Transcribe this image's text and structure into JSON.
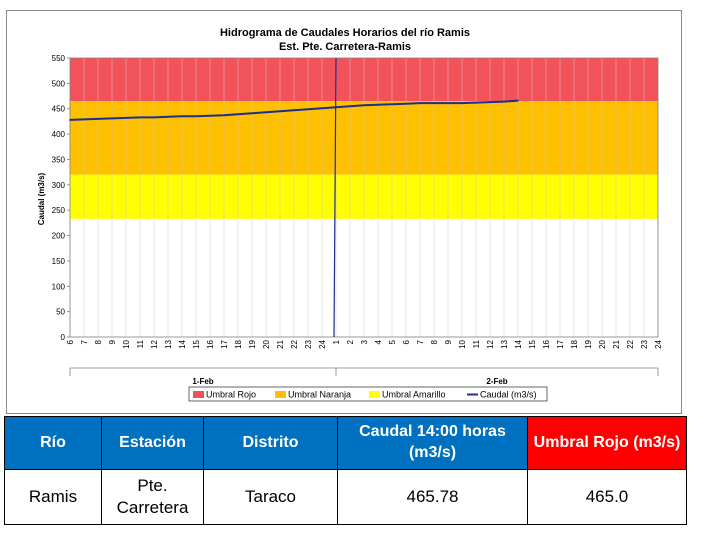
{
  "chart_data": {
    "type": "line",
    "title": "Hidrograma de Caudales Horarios del río Ramis",
    "subtitle": "Est. Pte. Carretera-Ramis",
    "ylabel": "Caudal  (m3/s)",
    "ylim": [
      0,
      550
    ],
    "yticks": [
      0,
      50,
      100,
      150,
      200,
      250,
      300,
      350,
      400,
      450,
      500,
      550
    ],
    "hour_ticks": [
      "6",
      "7",
      "8",
      "9",
      "10",
      "11",
      "12",
      "13",
      "14",
      "15",
      "16",
      "17",
      "18",
      "19",
      "20",
      "21",
      "22",
      "23",
      "24",
      "1",
      "2",
      "3",
      "4",
      "5",
      "6",
      "7",
      "8",
      "9",
      "10",
      "11",
      "12",
      "13",
      "14",
      "15",
      "16",
      "17",
      "18",
      "19",
      "20",
      "21",
      "22",
      "23",
      "24"
    ],
    "day_labels": [
      {
        "label": "1-Feb",
        "start_index": 0,
        "end_index": 19
      },
      {
        "label": "2-Feb",
        "start_index": 19,
        "end_index": 42
      }
    ],
    "thresholds": [
      {
        "name": "Umbral Rojo",
        "from": 465,
        "to": 550,
        "color": "#f4525a"
      },
      {
        "name": "Umbral Naranja",
        "from": 320,
        "to": 465,
        "color": "#ffc000"
      },
      {
        "name": "Umbral Amarillo",
        "from": 233,
        "to": 320,
        "color": "#ffff00"
      }
    ],
    "series": [
      {
        "name": "Caudal (m3/s)",
        "color": "#1f2d8f",
        "hours": [
          "6",
          "7",
          "8",
          "9",
          "10",
          "11",
          "12",
          "13",
          "14",
          "15",
          "16",
          "17",
          "18",
          "19",
          "20",
          "21",
          "22",
          "23",
          "24",
          "1",
          "2",
          "3",
          "4",
          "5",
          "6",
          "7",
          "8",
          "9",
          "10",
          "11",
          "12",
          "13",
          "14"
        ],
        "values": [
          428,
          429,
          430,
          431,
          432,
          433,
          433,
          434,
          435,
          435,
          436,
          437,
          439,
          441,
          443,
          445,
          447,
          449,
          451,
          453,
          455,
          457,
          458,
          459,
          460,
          461,
          461,
          461,
          461,
          462,
          463,
          464,
          466
        ]
      }
    ],
    "current_marker": {
      "hour": "1",
      "day": "2-Feb",
      "color": "#1f2d8f"
    },
    "legend": [
      "Umbral Rojo",
      "Umbral Naranja",
      "Umbral Amarillo",
      "Caudal (m3/s)"
    ],
    "legend_position": "bottom"
  },
  "table": {
    "headers": {
      "rio": "Río",
      "estacion": "Estación",
      "distrito": "Distrito",
      "caudal": "Caudal 14:00 horas (m3/s)",
      "umbral": "Umbral Rojo (m3/s)"
    },
    "row": {
      "rio": "Ramis",
      "estacion": "Pte. Carretera",
      "distrito": "Taraco",
      "caudal": "465.78",
      "umbral": "465.0"
    },
    "colors": {
      "header_blue": "#0070c0",
      "header_red": "#ff0000"
    }
  }
}
